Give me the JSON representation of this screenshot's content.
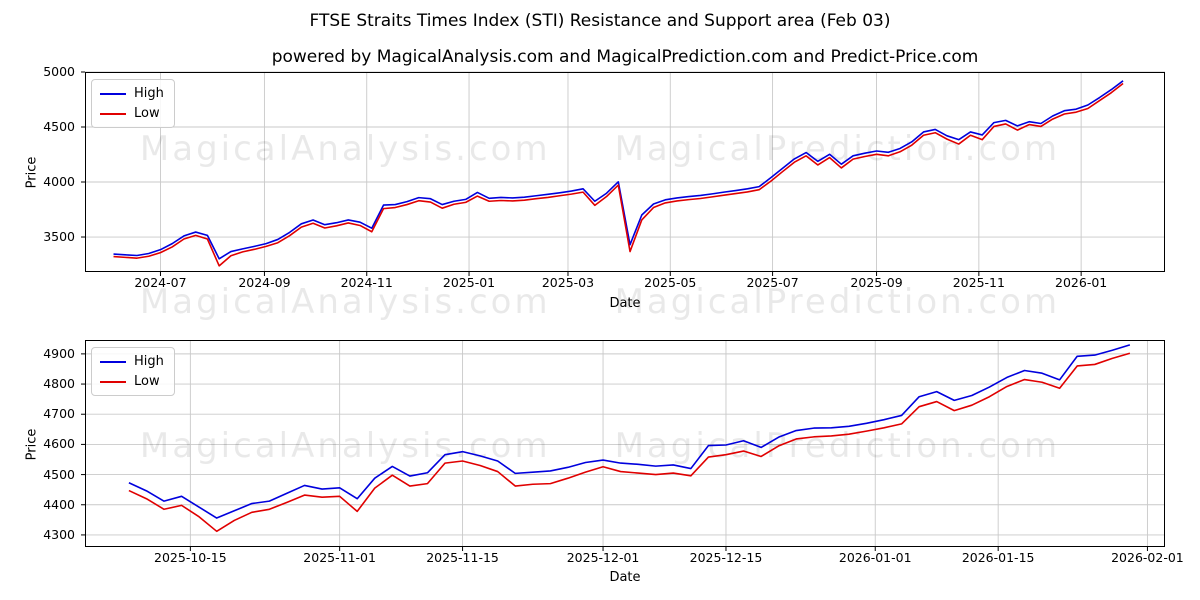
{
  "figure": {
    "title": "FTSE Straits Times Index (STI) Resistance and Support area (Feb 03)",
    "subtitle": "powered by MagicalAnalysis.com and MagicalPrediction.com and Predict-Price.com",
    "watermarks": {
      "left": "MagicalAnalysis.com",
      "right": "MagicalPrediction.com"
    },
    "colors": {
      "high": "#0000dd",
      "low": "#e00000",
      "grid": "#c9c9c9"
    }
  },
  "chart_data": [
    {
      "type": "line",
      "name": "sti-full-history",
      "xlabel": "Date",
      "ylabel": "Price",
      "grid": true,
      "legend": [
        "High",
        "Low"
      ],
      "legend_position": "upper-left",
      "xlim": [
        "2024-05-17",
        "2026-02-20"
      ],
      "ylim": [
        3182,
        5000
      ],
      "y_ticks": [
        3500,
        4000,
        4500,
        5000
      ],
      "x_ticks": [
        {
          "date": "2024-07-01",
          "label": "2024-07"
        },
        {
          "date": "2024-09-01",
          "label": "2024-09"
        },
        {
          "date": "2024-11-01",
          "label": "2024-11"
        },
        {
          "date": "2025-01-01",
          "label": "2025-01"
        },
        {
          "date": "2025-03-01",
          "label": "2025-03"
        },
        {
          "date": "2025-05-01",
          "label": "2025-05"
        },
        {
          "date": "2025-07-01",
          "label": "2025-07"
        },
        {
          "date": "2025-09-01",
          "label": "2025-09"
        },
        {
          "date": "2025-11-01",
          "label": "2025-11"
        },
        {
          "date": "2026-01-01",
          "label": "2026-01"
        }
      ],
      "series": [
        {
          "name": "High",
          "color_key": "high",
          "start_date": "2024-06-03",
          "interval_days": 7,
          "values": [
            3345,
            3338,
            3332,
            3350,
            3385,
            3440,
            3510,
            3545,
            3515,
            3302,
            3368,
            3392,
            3415,
            3440,
            3478,
            3542,
            3620,
            3655,
            3612,
            3630,
            3655,
            3635,
            3580,
            3790,
            3795,
            3822,
            3858,
            3848,
            3795,
            3825,
            3842,
            3905,
            3852,
            3860,
            3855,
            3862,
            3875,
            3888,
            3902,
            3918,
            3938,
            3825,
            3898,
            4002,
            3430,
            3700,
            3800,
            3838,
            3855,
            3868,
            3878,
            3892,
            3908,
            3922,
            3938,
            3958,
            4040,
            4125,
            4210,
            4268,
            4188,
            4252,
            4162,
            4238,
            4262,
            4282,
            4270,
            4305,
            4365,
            4455,
            4478,
            4420,
            4385,
            4455,
            4428,
            4540,
            4560,
            4510,
            4548,
            4532,
            4600,
            4648,
            4662,
            4700,
            4768,
            4840,
            4920
          ]
        },
        {
          "name": "Low",
          "color_key": "low",
          "start_date": "2024-06-03",
          "interval_days": 7,
          "values": [
            3322,
            3315,
            3308,
            3325,
            3358,
            3410,
            3482,
            3515,
            3482,
            3238,
            3330,
            3365,
            3388,
            3415,
            3448,
            3512,
            3590,
            3625,
            3582,
            3602,
            3628,
            3605,
            3548,
            3758,
            3768,
            3795,
            3830,
            3818,
            3762,
            3798,
            3815,
            3872,
            3825,
            3832,
            3828,
            3835,
            3848,
            3860,
            3875,
            3890,
            3908,
            3788,
            3868,
            3972,
            3368,
            3655,
            3768,
            3810,
            3828,
            3840,
            3850,
            3865,
            3880,
            3895,
            3910,
            3930,
            4008,
            4095,
            4180,
            4238,
            4155,
            4222,
            4128,
            4208,
            4232,
            4252,
            4238,
            4275,
            4335,
            4425,
            4448,
            4390,
            4345,
            4425,
            4385,
            4505,
            4528,
            4472,
            4522,
            4505,
            4572,
            4618,
            4635,
            4668,
            4740,
            4812,
            4895
          ]
        }
      ]
    },
    {
      "type": "line",
      "name": "sti-recent-4-months",
      "xlabel": "Date",
      "ylabel": "Price",
      "grid": true,
      "legend": [
        "High",
        "Low"
      ],
      "legend_position": "upper-left",
      "xlim": [
        "2025-10-03",
        "2026-02-03"
      ],
      "ylim": [
        4260,
        4946
      ],
      "y_ticks": [
        4300,
        4400,
        4500,
        4600,
        4700,
        4800,
        4900
      ],
      "x_ticks": [
        {
          "date": "2025-10-15",
          "label": "2025-10-15"
        },
        {
          "date": "2025-11-01",
          "label": "2025-11-01"
        },
        {
          "date": "2025-11-15",
          "label": "2025-11-15"
        },
        {
          "date": "2025-12-01",
          "label": "2025-12-01"
        },
        {
          "date": "2025-12-15",
          "label": "2025-12-15"
        },
        {
          "date": "2026-01-01",
          "label": "2026-01-01"
        },
        {
          "date": "2026-01-15",
          "label": "2026-01-15"
        },
        {
          "date": "2026-02-01",
          "label": "2026-02-01"
        }
      ],
      "series": [
        {
          "name": "High",
          "color_key": "high",
          "start_date": "2025-10-08",
          "interval_days": 2,
          "values": [
            4473,
            4446,
            4412,
            4428,
            4392,
            4356,
            4380,
            4404,
            4412,
            4438,
            4464,
            4452,
            4456,
            4420,
            4488,
            4527,
            4495,
            4506,
            4566,
            4576,
            4562,
            4545,
            4504,
            4508,
            4512,
            4524,
            4540,
            4548,
            4538,
            4534,
            4528,
            4532,
            4520,
            4596,
            4598,
            4612,
            4590,
            4624,
            4646,
            4654,
            4655,
            4660,
            4670,
            4682,
            4696,
            4758,
            4775,
            4746,
            4762,
            4790,
            4822,
            4845,
            4836,
            4814,
            4892,
            4896,
            4912,
            4930
          ]
        },
        {
          "name": "Low",
          "color_key": "low",
          "start_date": "2025-10-08",
          "interval_days": 2,
          "values": [
            4447,
            4420,
            4385,
            4398,
            4360,
            4312,
            4348,
            4375,
            4385,
            4408,
            4432,
            4425,
            4428,
            4378,
            4455,
            4498,
            4462,
            4470,
            4538,
            4545,
            4530,
            4510,
            4462,
            4468,
            4470,
            4488,
            4508,
            4526,
            4510,
            4505,
            4500,
            4505,
            4496,
            4558,
            4566,
            4578,
            4560,
            4595,
            4618,
            4625,
            4628,
            4634,
            4644,
            4655,
            4668,
            4725,
            4742,
            4712,
            4730,
            4758,
            4792,
            4815,
            4806,
            4786,
            4860,
            4865,
            4885,
            4902
          ]
        }
      ]
    }
  ]
}
